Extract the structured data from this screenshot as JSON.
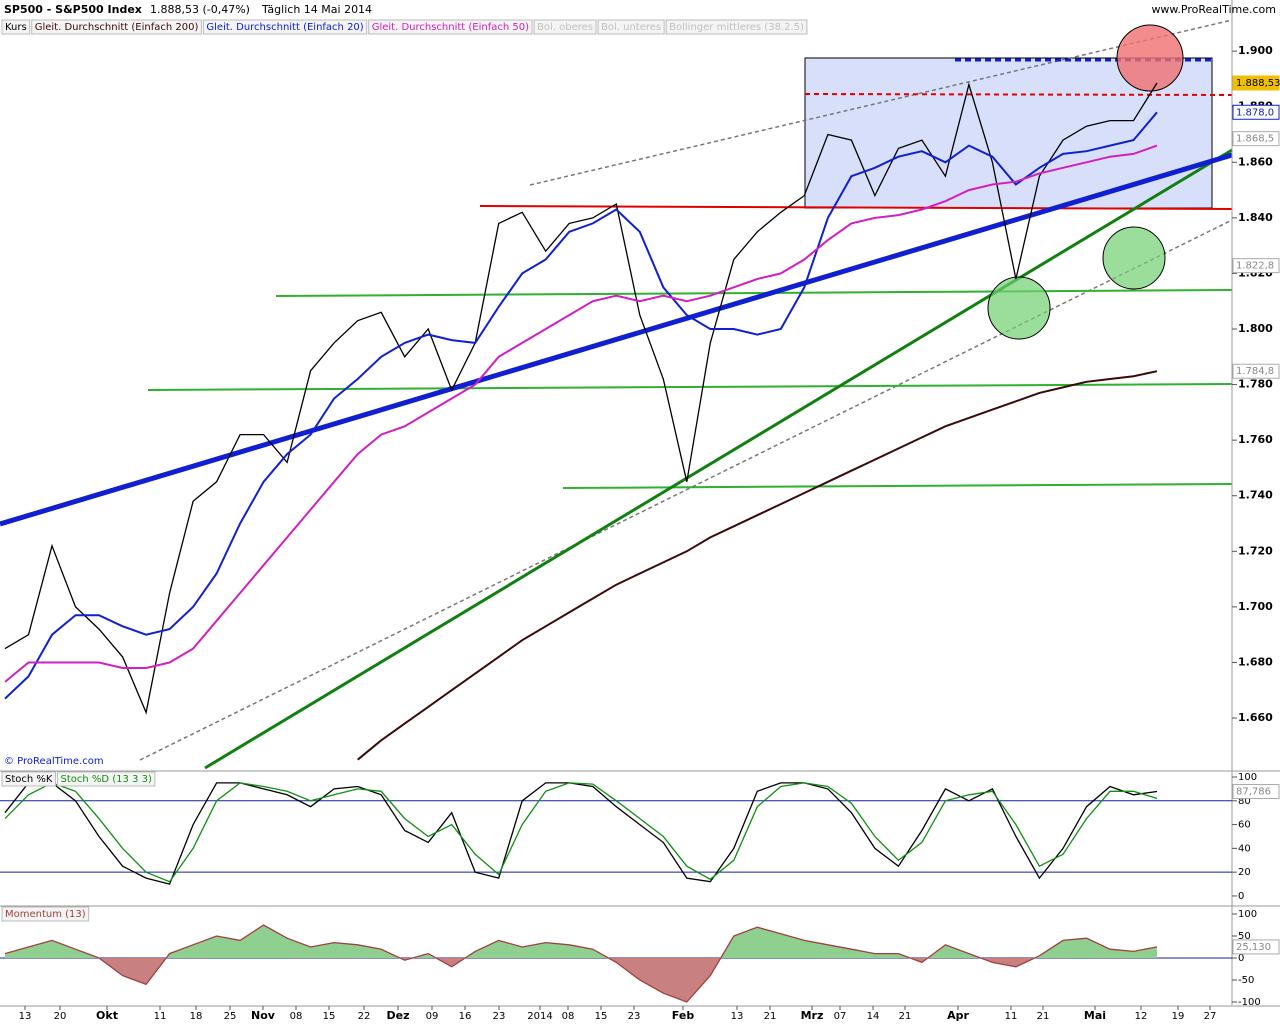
{
  "header": {
    "symbol": "SP500 - S&P500 Index",
    "quote": "1.888,53 (-0,47%)",
    "period": "Täglich 14 Mai 2014",
    "site": "www.ProRealTime.com",
    "copyright": "© ProRealTime.com"
  },
  "x_axis_labels": [
    "13",
    "20",
    "Okt",
    "11",
    "18",
    "25",
    "Nov",
    "08",
    "15",
    "22",
    "Dez",
    "09",
    "16",
    "23",
    "2014",
    "08",
    "15",
    "23",
    "Feb",
    "13",
    "21",
    "Mrz",
    "07",
    "14",
    "21",
    "Apr",
    "11",
    "21",
    "Mai",
    "12",
    "19",
    "27"
  ],
  "chart_data": [
    {
      "type": "line",
      "series": [
        {
          "name": "Kurs",
          "color": "#000000",
          "values": [
            1685,
            1690,
            1722,
            1700,
            1692,
            1682,
            1662,
            1705,
            1738,
            1745,
            1762,
            1762,
            1752,
            1785,
            1795,
            1803,
            1806,
            1790,
            1800,
            1778,
            1795,
            1838,
            1842,
            1828,
            1838,
            1840,
            1845,
            1805,
            1782,
            1745,
            1795,
            1825,
            1835,
            1842,
            1848,
            1870,
            1868,
            1848,
            1865,
            1868,
            1855,
            1888,
            1860,
            1818,
            1855,
            1868,
            1873,
            1875,
            1875,
            1888.53
          ]
        },
        {
          "name": "Gleit. Durchschnitt (Einfach 200)",
          "color": "#3a0a0a",
          "values": [
            null,
            null,
            null,
            null,
            null,
            null,
            null,
            null,
            null,
            null,
            null,
            null,
            null,
            null,
            null,
            1645,
            1652,
            1658,
            1664,
            1670,
            1676,
            1682,
            1688,
            1693,
            1698,
            1703,
            1708,
            1712,
            1716,
            1720,
            1725,
            1729,
            1733,
            1737,
            1741,
            1745,
            1749,
            1753,
            1757,
            1761,
            1765,
            1768,
            1771,
            1774,
            1777,
            1779,
            1781,
            1782,
            1783,
            1784.8
          ]
        },
        {
          "name": "Gleit. Durchschnitt (Einfach 20)",
          "color": "#1020d0",
          "values": [
            1667,
            1675,
            1690,
            1697,
            1697,
            1693,
            1690,
            1692,
            1700,
            1712,
            1730,
            1745,
            1755,
            1762,
            1775,
            1782,
            1790,
            1795,
            1798,
            1796,
            1795,
            1808,
            1820,
            1825,
            1835,
            1838,
            1843,
            1835,
            1815,
            1805,
            1800,
            1800,
            1798,
            1800,
            1815,
            1840,
            1855,
            1858,
            1862,
            1864,
            1860,
            1866,
            1862,
            1852,
            1858,
            1863,
            1864,
            1866,
            1868,
            1878
          ]
        },
        {
          "name": "Gleit. Durchschnitt (Einfach 50)",
          "color": "#d020c0",
          "values": [
            1673,
            1680,
            1680,
            1680,
            1680,
            1678,
            1678,
            1680,
            1685,
            1695,
            1705,
            1715,
            1725,
            1735,
            1745,
            1755,
            1762,
            1765,
            1770,
            1775,
            1780,
            1790,
            1795,
            1800,
            1805,
            1810,
            1812,
            1810,
            1812,
            1810,
            1812,
            1815,
            1818,
            1820,
            1825,
            1832,
            1838,
            1840,
            1841,
            1843,
            1846,
            1850,
            1852,
            1853,
            1856,
            1858,
            1860,
            1862,
            1863,
            1866
          ]
        }
      ],
      "legend_extra": [
        "Bol. oberes",
        "Bol. unteres",
        "Bollinger mittleres (38.2.5)"
      ],
      "ylim": [
        1641.3,
        1918.4
      ],
      "yticks": [
        {
          "value": 1660,
          "label": "1.660"
        },
        {
          "value": 1680,
          "label": "1.680"
        },
        {
          "value": 1700,
          "label": "1.700"
        },
        {
          "value": 1720,
          "label": "1.720"
        },
        {
          "value": 1740,
          "label": "1.740"
        },
        {
          "value": 1760,
          "label": "1.760"
        },
        {
          "value": 1780,
          "label": "1.780"
        },
        {
          "value": 1800,
          "label": "1.800"
        },
        {
          "value": 1820,
          "label": "1.820"
        },
        {
          "value": 1840,
          "label": "1.840"
        },
        {
          "value": 1860,
          "label": "1.860"
        },
        {
          "value": 1880,
          "label": "1.880"
        },
        {
          "value": 1900,
          "label": "1.900"
        }
      ],
      "badges": [
        {
          "value": 1888.53,
          "label": "1.888,53",
          "color": "#f0c000"
        },
        {
          "value": 1878.0,
          "label": "1.878,0",
          "color": "#1020d0"
        },
        {
          "value": 1868.5,
          "label": "1.868,5",
          "color": "#aaaaaa"
        },
        {
          "value": 1822.8,
          "label": "1.822,8",
          "color": "#aaaaaa"
        },
        {
          "value": 1784.8,
          "label": "1.784,8",
          "color": "#aaaaaa"
        }
      ]
    },
    {
      "type": "line",
      "series": [
        {
          "name": "Stoch %K",
          "color": "#000000",
          "values": [
            70,
            95,
            95,
            80,
            50,
            25,
            15,
            10,
            60,
            95,
            95,
            90,
            85,
            75,
            90,
            92,
            85,
            55,
            45,
            70,
            20,
            15,
            80,
            95,
            95,
            92,
            75,
            60,
            45,
            15,
            12,
            40,
            88,
            95,
            95,
            90,
            70,
            40,
            25,
            55,
            90,
            80,
            90,
            50,
            15,
            40,
            75,
            92,
            85,
            87.786
          ]
        },
        {
          "name": "Stoch %D (13 3 3)",
          "color": "#109010",
          "values": [
            65,
            85,
            95,
            88,
            65,
            40,
            20,
            12,
            40,
            80,
            95,
            92,
            88,
            80,
            85,
            90,
            88,
            65,
            50,
            60,
            35,
            18,
            60,
            88,
            95,
            94,
            80,
            65,
            50,
            25,
            14,
            30,
            75,
            92,
            95,
            92,
            78,
            50,
            30,
            45,
            80,
            85,
            88,
            60,
            25,
            35,
            65,
            88,
            88,
            82
          ]
        }
      ],
      "ylim": [
        -7.6,
        104.2
      ],
      "yticks": [
        0,
        20,
        40,
        60,
        80,
        100
      ],
      "levels": [
        20,
        80
      ],
      "badges": [
        {
          "value": 87.786,
          "label": "87,786",
          "color": "#aaaaaa"
        }
      ]
    },
    {
      "type": "area",
      "series": [
        {
          "name": "Momentum (13)",
          "color": "#a04040",
          "values": [
            10,
            25,
            40,
            20,
            0,
            -40,
            -60,
            10,
            30,
            50,
            40,
            75,
            45,
            25,
            35,
            30,
            20,
            -5,
            10,
            -20,
            15,
            40,
            25,
            35,
            30,
            20,
            -10,
            -50,
            -80,
            -100,
            -40,
            50,
            70,
            55,
            40,
            30,
            20,
            10,
            10,
            -10,
            30,
            10,
            -10,
            -20,
            5,
            40,
            45,
            20,
            15,
            25.13
          ]
        }
      ],
      "ylim": [
        -106.8,
        115.9
      ],
      "yticks": [
        -100,
        -50,
        0,
        50,
        100
      ],
      "levels": [
        0
      ],
      "badges": [
        {
          "value": 25.13,
          "label": "25,130",
          "color": "#aaaaaa"
        }
      ]
    }
  ]
}
